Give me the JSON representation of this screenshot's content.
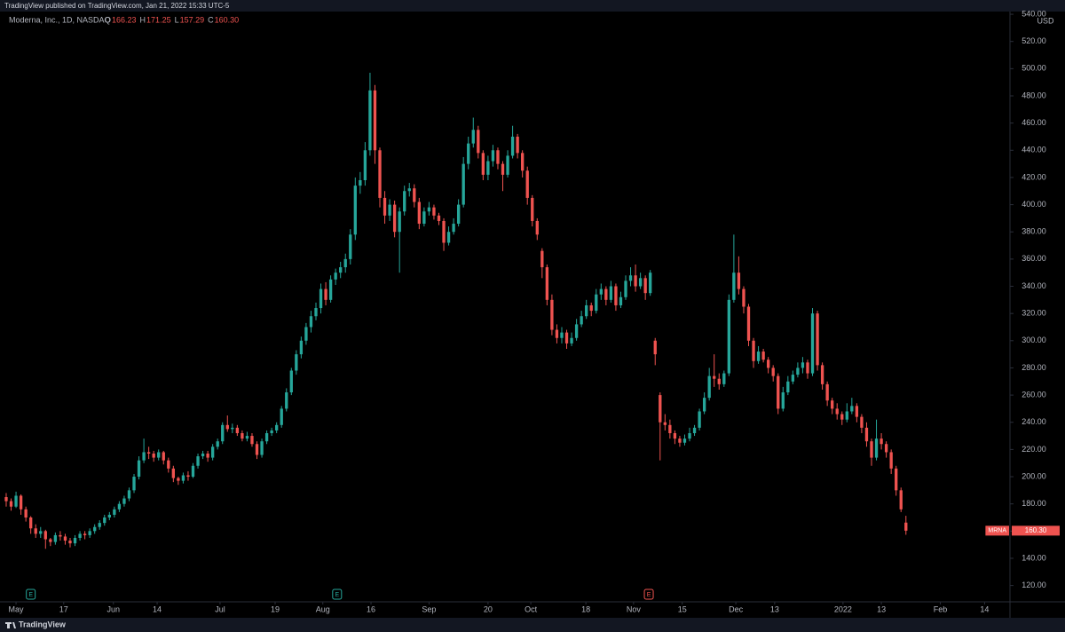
{
  "published": "TradingView published on TradingView.com, Jan 21, 2022 15:33 UTC-5",
  "brand": "TradingView",
  "chart_data": {
    "type": "candlestick",
    "title": "Moderna, Inc., 1D, NASDAQ",
    "ohlc_keys": [
      "O",
      "H",
      "L",
      "C"
    ],
    "ohlc_values": [
      "166.23",
      "171.25",
      "157.29",
      "160.30"
    ],
    "currency": "USD",
    "last_price": {
      "symbol": "MRNA",
      "label": "160.30"
    },
    "up_color": "#26a69a",
    "down_color": "#ef5350",
    "ylim": [
      108,
      542
    ],
    "yticks": [
      {
        "value": 120,
        "label": "120.00"
      },
      {
        "value": 140,
        "label": "140.00"
      },
      {
        "value": 160,
        "label": "160.00"
      },
      {
        "value": 180,
        "label": "180.00"
      },
      {
        "value": 200,
        "label": "200.00"
      },
      {
        "value": 220,
        "label": "220.00"
      },
      {
        "value": 240,
        "label": "240.00"
      },
      {
        "value": 260,
        "label": "260.00"
      },
      {
        "value": 280,
        "label": "280.00"
      },
      {
        "value": 300,
        "label": "300.00"
      },
      {
        "value": 320,
        "label": "320.00"
      },
      {
        "value": 340,
        "label": "340.00"
      },
      {
        "value": 360,
        "label": "360.00"
      },
      {
        "value": 380,
        "label": "380.00"
      },
      {
        "value": 400,
        "label": "400.00"
      },
      {
        "value": 420,
        "label": "420.00"
      },
      {
        "value": 440,
        "label": "440.00"
      },
      {
        "value": 460,
        "label": "460.00"
      },
      {
        "value": 480,
        "label": "480.00"
      },
      {
        "value": 500,
        "label": "500.00"
      },
      {
        "value": 520,
        "label": "520.00"
      },
      {
        "value": 540,
        "label": "540.00"
      }
    ],
    "xlim": [
      -1.26,
      204.16
    ],
    "xticks": [
      {
        "value": 2,
        "label": "May"
      },
      {
        "value": 11.7,
        "label": "17"
      },
      {
        "value": 21.8,
        "label": "Jun"
      },
      {
        "value": 30.7,
        "label": "14"
      },
      {
        "value": 43.5,
        "label": "Jul"
      },
      {
        "value": 54.7,
        "label": "19"
      },
      {
        "value": 64.4,
        "label": "Aug"
      },
      {
        "value": 74.2,
        "label": "16"
      },
      {
        "value": 86,
        "label": "Sep"
      },
      {
        "value": 98,
        "label": "20"
      },
      {
        "value": 106.7,
        "label": "Oct"
      },
      {
        "value": 117.9,
        "label": "18"
      },
      {
        "value": 127.6,
        "label": "Nov"
      },
      {
        "value": 137.5,
        "label": "15"
      },
      {
        "value": 148.4,
        "label": "Dec"
      },
      {
        "value": 156.3,
        "label": "13"
      },
      {
        "value": 170.2,
        "label": "2022"
      },
      {
        "value": 178,
        "label": "13"
      },
      {
        "value": 190,
        "label": "Feb"
      },
      {
        "value": 199,
        "label": "14"
      }
    ],
    "events": [
      {
        "x": 5,
        "label": "E",
        "color": "#26a69a"
      },
      {
        "x": 67.3,
        "label": "E",
        "color": "#26a69a"
      },
      {
        "x": 130.7,
        "label": "E",
        "color": "#ef5350"
      }
    ],
    "candles": [
      [
        185,
        188,
        178,
        182
      ],
      [
        182,
        184,
        175,
        178
      ],
      [
        178,
        189,
        177,
        186
      ],
      [
        186,
        187,
        172,
        176
      ],
      [
        176,
        178,
        167,
        170
      ],
      [
        170,
        171,
        158,
        162
      ],
      [
        162,
        165,
        155,
        158
      ],
      [
        158,
        163,
        155,
        160
      ],
      [
        160,
        161,
        147,
        154
      ],
      [
        154,
        155,
        149,
        152
      ],
      [
        152,
        159,
        150,
        157
      ],
      [
        157,
        160,
        153,
        156
      ],
      [
        156,
        158,
        150,
        153
      ],
      [
        153,
        155,
        148,
        151
      ],
      [
        151,
        157,
        149,
        155
      ],
      [
        155,
        160,
        153,
        158
      ],
      [
        158,
        160,
        154,
        157
      ],
      [
        157,
        162,
        155,
        160
      ],
      [
        160,
        165,
        158,
        163
      ],
      [
        163,
        168,
        161,
        166
      ],
      [
        166,
        172,
        164,
        170
      ],
      [
        170,
        174,
        168,
        172
      ],
      [
        172,
        178,
        170,
        176
      ],
      [
        176,
        182,
        174,
        180
      ],
      [
        180,
        186,
        178,
        184
      ],
      [
        184,
        192,
        182,
        190
      ],
      [
        190,
        202,
        188,
        200
      ],
      [
        200,
        215,
        198,
        212
      ],
      [
        212,
        228,
        210,
        218
      ],
      [
        218,
        222,
        213,
        217
      ],
      [
        217,
        219,
        211,
        214
      ],
      [
        214,
        220,
        212,
        218
      ],
      [
        218,
        219,
        209,
        212
      ],
      [
        212,
        214,
        203,
        206
      ],
      [
        206,
        208,
        196,
        199
      ],
      [
        199,
        200,
        194,
        197
      ],
      [
        197,
        203,
        195,
        201
      ],
      [
        201,
        204,
        197,
        200
      ],
      [
        200,
        210,
        199,
        208
      ],
      [
        208,
        217,
        206,
        215
      ],
      [
        215,
        219,
        213,
        217
      ],
      [
        217,
        219,
        211,
        214
      ],
      [
        214,
        224,
        212,
        222
      ],
      [
        222,
        228,
        220,
        226
      ],
      [
        226,
        240,
        224,
        238
      ],
      [
        238,
        245,
        233,
        235
      ],
      [
        235,
        239,
        232,
        236
      ],
      [
        236,
        238,
        230,
        232
      ],
      [
        232,
        234,
        226,
        228
      ],
      [
        228,
        233,
        226,
        230
      ],
      [
        230,
        232,
        222,
        224
      ],
      [
        224,
        226,
        213,
        216
      ],
      [
        216,
        228,
        214,
        226
      ],
      [
        226,
        234,
        224,
        232
      ],
      [
        232,
        236,
        230,
        234
      ],
      [
        234,
        240,
        232,
        238
      ],
      [
        238,
        252,
        236,
        250
      ],
      [
        250,
        265,
        248,
        262
      ],
      [
        262,
        280,
        260,
        278
      ],
      [
        278,
        293,
        275,
        290
      ],
      [
        290,
        303,
        287,
        300
      ],
      [
        300,
        313,
        297,
        310
      ],
      [
        310,
        322,
        306,
        318
      ],
      [
        318,
        328,
        315,
        324
      ],
      [
        324,
        342,
        320,
        338
      ],
      [
        338,
        343,
        326,
        330
      ],
      [
        330,
        348,
        328,
        345
      ],
      [
        345,
        353,
        341,
        350
      ],
      [
        350,
        358,
        346,
        354
      ],
      [
        354,
        364,
        350,
        360
      ],
      [
        360,
        382,
        356,
        378
      ],
      [
        378,
        420,
        374,
        414
      ],
      [
        414,
        424,
        408,
        418
      ],
      [
        418,
        446,
        414,
        440
      ],
      [
        440,
        497,
        436,
        484
      ],
      [
        484,
        488,
        430,
        440
      ],
      [
        440,
        442,
        398,
        405
      ],
      [
        405,
        410,
        386,
        392
      ],
      [
        392,
        404,
        388,
        400
      ],
      [
        400,
        403,
        376,
        380
      ],
      [
        380,
        398,
        350,
        395
      ],
      [
        395,
        414,
        392,
        410
      ],
      [
        410,
        416,
        406,
        412
      ],
      [
        412,
        415,
        398,
        402
      ],
      [
        402,
        405,
        382,
        386
      ],
      [
        386,
        398,
        384,
        395
      ],
      [
        395,
        402,
        392,
        398
      ],
      [
        398,
        400,
        389,
        392
      ],
      [
        392,
        394,
        385,
        388
      ],
      [
        388,
        390,
        366,
        372
      ],
      [
        372,
        384,
        370,
        380
      ],
      [
        380,
        390,
        378,
        386
      ],
      [
        386,
        404,
        384,
        400
      ],
      [
        400,
        435,
        398,
        430
      ],
      [
        430,
        450,
        426,
        445
      ],
      [
        445,
        464,
        442,
        455
      ],
      [
        455,
        458,
        434,
        438
      ],
      [
        438,
        440,
        418,
        422
      ],
      [
        422,
        436,
        418,
        432
      ],
      [
        432,
        444,
        428,
        440
      ],
      [
        440,
        442,
        426,
        430
      ],
      [
        430,
        432,
        410,
        422
      ],
      [
        422,
        440,
        420,
        436
      ],
      [
        436,
        458,
        434,
        450
      ],
      [
        450,
        452,
        434,
        438
      ],
      [
        438,
        440,
        420,
        425
      ],
      [
        425,
        428,
        400,
        405
      ],
      [
        405,
        407,
        384,
        388
      ],
      [
        388,
        390,
        374,
        378
      ],
      [
        366,
        368,
        346,
        354
      ],
      [
        354,
        356,
        326,
        330
      ],
      [
        330,
        334,
        304,
        308
      ],
      [
        308,
        312,
        298,
        302
      ],
      [
        302,
        310,
        298,
        306
      ],
      [
        306,
        308,
        294,
        298
      ],
      [
        298,
        306,
        296,
        302
      ],
      [
        302,
        316,
        300,
        312
      ],
      [
        312,
        322,
        310,
        318
      ],
      [
        318,
        330,
        316,
        326
      ],
      [
        326,
        328,
        318,
        322
      ],
      [
        322,
        338,
        320,
        334
      ],
      [
        334,
        342,
        330,
        338
      ],
      [
        338,
        340,
        326,
        330
      ],
      [
        330,
        344,
        328,
        340
      ],
      [
        340,
        342,
        322,
        326
      ],
      [
        326,
        336,
        324,
        332
      ],
      [
        332,
        348,
        330,
        344
      ],
      [
        344,
        354,
        340,
        348
      ],
      [
        348,
        356,
        336,
        340
      ],
      [
        340,
        350,
        338,
        346
      ],
      [
        346,
        348,
        330,
        335
      ],
      [
        335,
        352,
        333,
        350
      ],
      [
        300,
        302,
        282,
        290
      ],
      [
        260,
        262,
        212,
        240
      ],
      [
        240,
        246,
        234,
        238
      ],
      [
        238,
        242,
        228,
        232
      ],
      [
        232,
        234,
        224,
        228
      ],
      [
        228,
        230,
        222,
        225
      ],
      [
        225,
        231,
        223,
        228
      ],
      [
        228,
        236,
        226,
        232
      ],
      [
        232,
        238,
        230,
        236
      ],
      [
        236,
        250,
        234,
        248
      ],
      [
        248,
        262,
        246,
        258
      ],
      [
        258,
        280,
        256,
        274
      ],
      [
        274,
        290,
        266,
        272
      ],
      [
        272,
        276,
        264,
        268
      ],
      [
        268,
        278,
        266,
        276
      ],
      [
        276,
        334,
        274,
        330
      ],
      [
        330,
        378,
        328,
        350
      ],
      [
        350,
        362,
        334,
        338
      ],
      [
        338,
        340,
        320,
        325
      ],
      [
        325,
        327,
        296,
        300
      ],
      [
        300,
        302,
        280,
        285
      ],
      [
        285,
        296,
        283,
        292
      ],
      [
        292,
        294,
        284,
        286
      ],
      [
        286,
        288,
        276,
        280
      ],
      [
        280,
        282,
        270,
        274
      ],
      [
        274,
        276,
        246,
        250
      ],
      [
        250,
        266,
        248,
        262
      ],
      [
        262,
        274,
        260,
        270
      ],
      [
        270,
        278,
        268,
        275
      ],
      [
        275,
        284,
        273,
        280
      ],
      [
        280,
        288,
        276,
        284
      ],
      [
        284,
        286,
        272,
        276
      ],
      [
        276,
        324,
        274,
        320
      ],
      [
        320,
        322,
        278,
        282
      ],
      [
        282,
        284,
        264,
        268
      ],
      [
        268,
        270,
        252,
        256
      ],
      [
        256,
        258,
        246,
        250
      ],
      [
        250,
        254,
        242,
        246
      ],
      [
        246,
        248,
        238,
        242
      ],
      [
        242,
        254,
        240,
        248
      ],
      [
        248,
        258,
        246,
        252
      ],
      [
        252,
        254,
        240,
        244
      ],
      [
        244,
        246,
        232,
        236
      ],
      [
        236,
        240,
        222,
        226
      ],
      [
        226,
        228,
        208,
        214
      ],
      [
        214,
        242,
        212,
        228
      ],
      [
        228,
        232,
        220,
        224
      ],
      [
        224,
        226,
        214,
        218
      ],
      [
        218,
        220,
        202,
        206
      ],
      [
        206,
        208,
        186,
        190
      ],
      [
        190,
        192,
        174,
        176
      ],
      [
        166.23,
        171.25,
        157.29,
        160.3
      ]
    ]
  }
}
